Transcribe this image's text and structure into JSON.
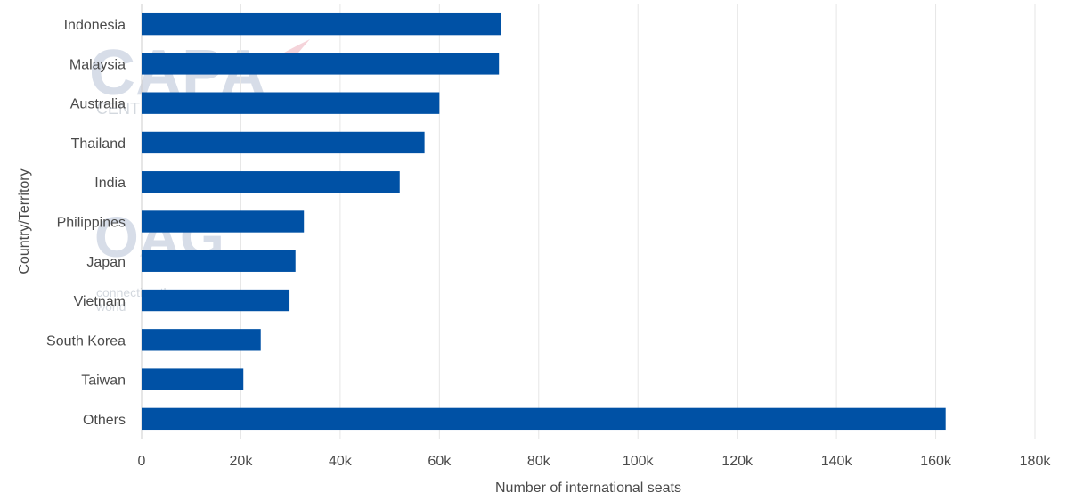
{
  "chart_data": {
    "type": "bar",
    "orientation": "horizontal",
    "categories": [
      "Indonesia",
      "Malaysia",
      "Australia",
      "Thailand",
      "India",
      "Philippines",
      "Japan",
      "Vietnam",
      "South Korea",
      "Taiwan",
      "Others"
    ],
    "values": [
      72500,
      72000,
      60000,
      57000,
      52000,
      32700,
      31000,
      29800,
      24000,
      20500,
      162000
    ],
    "xlabel": "Number of international seats",
    "ylabel": "Country/Territory",
    "xlim": [
      0,
      180000
    ],
    "xticks": [
      0,
      20000,
      40000,
      60000,
      80000,
      100000,
      120000,
      140000,
      160000,
      180000
    ],
    "xtick_labels": [
      "0",
      "20k",
      "40k",
      "60k",
      "80k",
      "100k",
      "120k",
      "140k",
      "160k",
      "180k"
    ],
    "grid": "vertical",
    "bar_color": "#0051a5",
    "grid_color": "#e6e6e6"
  }
}
